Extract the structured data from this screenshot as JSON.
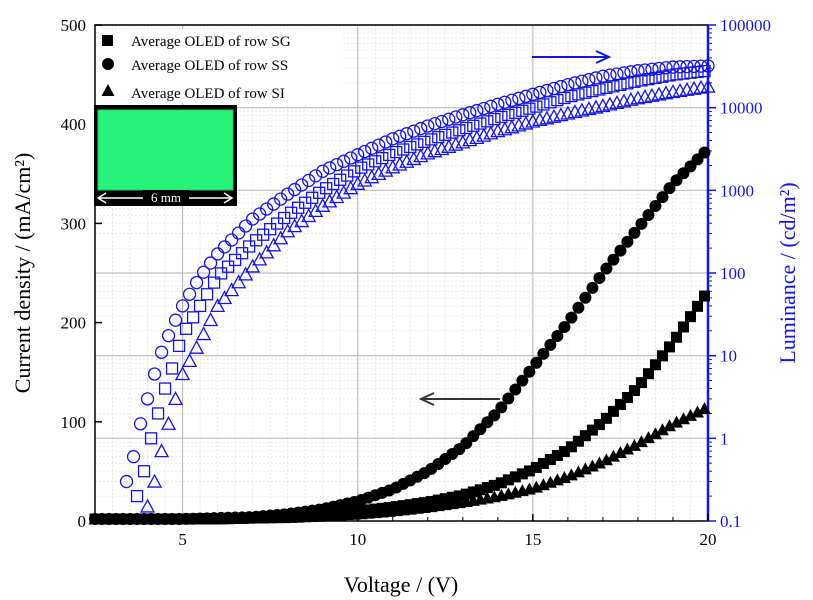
{
  "chart_data": {
    "type": "scatter",
    "xlabel": "Voltage / (V)",
    "ylabel_left": "Current density / (mA/cm²)",
    "ylabel_right": "Luminance / (cd/m²)",
    "xlim": [
      2.5,
      20
    ],
    "ylim_left": [
      0,
      500
    ],
    "ylim_right": [
      0.1,
      100000
    ],
    "right_axis_scale": "log",
    "grid": true,
    "legend_position": "top-left",
    "x_ticks": [
      "5",
      "10",
      "15",
      "20"
    ],
    "y_left_ticks": [
      "0",
      "100",
      "200",
      "300",
      "400",
      "500"
    ],
    "y_right_ticks": [
      "0.1",
      "1",
      "10",
      "100",
      "1000",
      "10000",
      "100000"
    ],
    "colors": {
      "current": "#000000",
      "luminance": "#1414e6",
      "inset": "#29f27a"
    },
    "inset": {
      "label": "6 mm"
    },
    "series": [
      {
        "name": "Average OLED of row SG",
        "marker": "square",
        "current": {
          "x": [
            2.5,
            4,
            5,
            6,
            7,
            8,
            9,
            10,
            11,
            12,
            13,
            14,
            15,
            16,
            17,
            18,
            19,
            20
          ],
          "y": [
            2,
            2,
            2,
            2.5,
            3,
            4,
            6,
            10,
            14,
            19,
            26,
            37,
            52,
            72,
            100,
            135,
            180,
            232
          ]
        },
        "luminance": {
          "x": [
            3.7,
            3.9,
            4.1,
            4.3,
            4.5,
            4.7,
            5,
            5.5,
            6,
            7,
            8,
            9,
            10,
            11,
            12,
            13,
            14,
            15,
            16,
            17,
            18,
            19,
            20
          ],
          "y": [
            0.2,
            0.4,
            1.0,
            2.0,
            4.0,
            7.0,
            18,
            40,
            90,
            230,
            500,
            1000,
            1800,
            2800,
            4000,
            5500,
            7500,
            10000,
            13500,
            17000,
            21000,
            25000,
            28000
          ]
        }
      },
      {
        "name": "Average OLED of row SS",
        "marker": "circle",
        "current": {
          "x": [
            2.5,
            4,
            5,
            6,
            7,
            8,
            9,
            10,
            11,
            12,
            13,
            14,
            15,
            16,
            17,
            18,
            19,
            20
          ],
          "y": [
            2,
            2,
            2,
            3,
            4,
            7,
            12,
            20,
            32,
            50,
            75,
            110,
            155,
            200,
            250,
            295,
            340,
            375
          ]
        },
        "luminance": {
          "x": [
            3.4,
            3.6,
            3.8,
            4.0,
            4.2,
            4.4,
            4.7,
            5,
            5.5,
            6,
            7,
            8,
            9,
            10,
            11,
            12,
            13,
            14,
            15,
            16,
            17,
            18,
            19,
            20
          ],
          "y": [
            0.3,
            0.6,
            1.5,
            3.0,
            6.0,
            11,
            22,
            40,
            90,
            170,
            450,
            900,
            1700,
            2700,
            4200,
            6000,
            8200,
            11000,
            14500,
            19000,
            24000,
            28000,
            31000,
            32000
          ]
        }
      },
      {
        "name": "Average OLED of row SI",
        "marker": "triangle",
        "current": {
          "x": [
            2.5,
            4,
            5,
            6,
            7,
            8,
            9,
            10,
            11,
            12,
            13,
            14,
            15,
            16,
            17,
            18,
            19,
            20
          ],
          "y": [
            2,
            2,
            2,
            2,
            3,
            3.5,
            5,
            7,
            10,
            14,
            19,
            25,
            33,
            45,
            60,
            78,
            98,
            115
          ]
        },
        "luminance": {
          "x": [
            4.0,
            4.2,
            4.4,
            4.6,
            4.8,
            5,
            5.5,
            6,
            7,
            8,
            9,
            10,
            11,
            12,
            13,
            14,
            15,
            16,
            17,
            18,
            19,
            20
          ],
          "y": [
            0.15,
            0.3,
            0.7,
            1.5,
            3.0,
            6.0,
            15,
            40,
            120,
            320,
            650,
            1200,
            1900,
            2800,
            3800,
            5200,
            6800,
            8500,
            10500,
            13000,
            15500,
            18000
          ]
        }
      }
    ]
  }
}
